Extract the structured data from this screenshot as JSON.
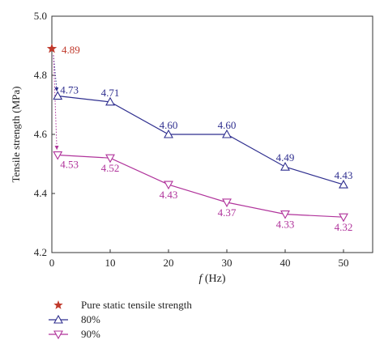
{
  "chart_data": {
    "type": "line",
    "xlabel_italic": "f",
    "xlabel_rest": " (Hz)",
    "ylabel": "Tensile strength (MPa)",
    "xlim": [
      0,
      55
    ],
    "ylim": [
      4.2,
      5.0
    ],
    "xticks": [
      0,
      10,
      20,
      30,
      40,
      50
    ],
    "yticks": [
      4.2,
      4.4,
      4.6,
      4.8,
      5.0
    ],
    "ytick_labels": [
      "4.2",
      "4.4",
      "4.6",
      "4.8",
      "5.0"
    ],
    "grid": false,
    "legend_position": "bottom-left, below plot",
    "static_point": {
      "name": "Pure static tensile strength",
      "x": 0,
      "y": 4.89,
      "label": "4.89",
      "color": "#c0392b"
    },
    "series": [
      {
        "name": "80%",
        "color": "#2f2f8f",
        "marker": "triangle-up",
        "x": [
          1,
          10,
          20,
          30,
          40,
          50
        ],
        "y": [
          4.73,
          4.71,
          4.6,
          4.6,
          4.49,
          4.43
        ],
        "labels": [
          "4.73",
          "4.71",
          "4.60",
          "4.60",
          "4.49",
          "4.43"
        ]
      },
      {
        "name": "90%",
        "color": "#b0339b",
        "marker": "triangle-down",
        "x": [
          1,
          10,
          20,
          30,
          40,
          50
        ],
        "y": [
          4.53,
          4.52,
          4.43,
          4.37,
          4.33,
          4.32
        ],
        "labels": [
          "4.53",
          "4.52",
          "4.43",
          "4.37",
          "4.33",
          "4.32"
        ]
      }
    ]
  }
}
